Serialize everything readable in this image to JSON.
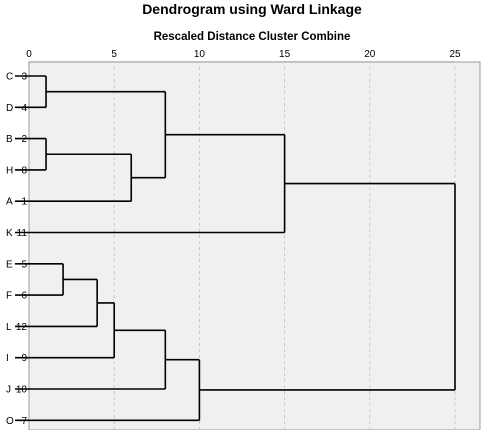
{
  "chart_data": {
    "type": "dendrogram",
    "title": "Dendrogram using Ward Linkage",
    "subtitle": "Rescaled Distance Cluster Combine",
    "x_axis": {
      "min": 0,
      "max": 25,
      "ticks": [
        0,
        5,
        10,
        15,
        20,
        25
      ],
      "tick_labels": [
        "0",
        "5",
        "10",
        "15",
        "20",
        "25"
      ],
      "grid": "dashed-vertical"
    },
    "background_color": "#f0f0f0",
    "line_color": "#000000",
    "leaves": [
      {
        "name": "C",
        "number": "3"
      },
      {
        "name": "D",
        "number": "4"
      },
      {
        "name": "B",
        "number": "2"
      },
      {
        "name": "H",
        "number": "8"
      },
      {
        "name": "A",
        "number": "1"
      },
      {
        "name": "K",
        "number": "11"
      },
      {
        "name": "E",
        "number": "5"
      },
      {
        "name": "F",
        "number": "6"
      },
      {
        "name": "L",
        "number": "12"
      },
      {
        "name": "I",
        "number": "9"
      },
      {
        "name": "J",
        "number": "10"
      },
      {
        "name": "O",
        "number": "7"
      }
    ],
    "merges": [
      {
        "id": "m1",
        "children": [
          "C",
          "D"
        ],
        "distance": 1
      },
      {
        "id": "m2",
        "children": [
          "B",
          "H"
        ],
        "distance": 1
      },
      {
        "id": "m3",
        "children": [
          "E",
          "F"
        ],
        "distance": 2
      },
      {
        "id": "m4",
        "children": [
          "m3",
          "L"
        ],
        "distance": 4
      },
      {
        "id": "m5",
        "children": [
          "m4",
          "I"
        ],
        "distance": 5
      },
      {
        "id": "m6",
        "children": [
          "m2",
          "A"
        ],
        "distance": 6
      },
      {
        "id": "m7",
        "children": [
          "m5",
          "J"
        ],
        "distance": 8
      },
      {
        "id": "m8",
        "children": [
          "m1",
          "m6"
        ],
        "distance": 8
      },
      {
        "id": "m9",
        "children": [
          "m7",
          "O"
        ],
        "distance": 10
      },
      {
        "id": "m10",
        "children": [
          "m8",
          "K"
        ],
        "distance": 15
      },
      {
        "id": "m11",
        "children": [
          "m10",
          "m9"
        ],
        "distance": 25
      }
    ]
  }
}
